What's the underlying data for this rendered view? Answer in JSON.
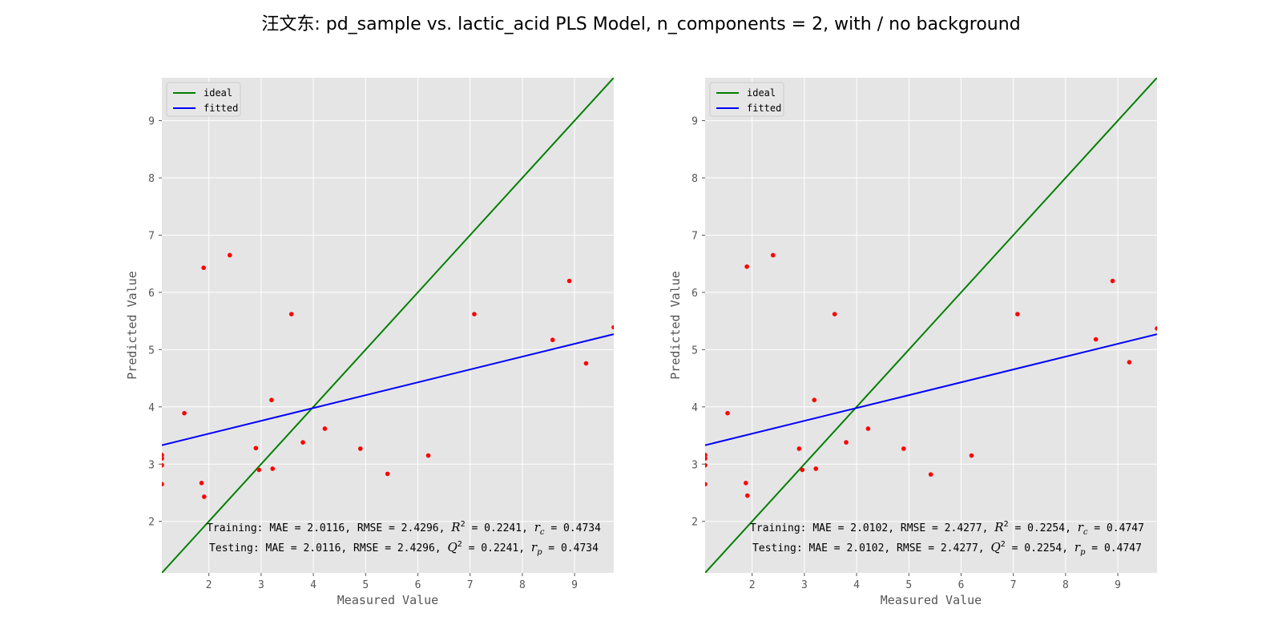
{
  "suptitle": "汪文东: pd_sample vs. lactic_acid PLS Model, n_components = 2, with / no background",
  "colors": {
    "ideal": "#008000",
    "fitted": "#0000ff",
    "points": "#ff0000",
    "panel_bg": "#e5e5e5",
    "grid": "#ffffff"
  },
  "chart_data": [
    {
      "type": "scatter",
      "xlabel": "Measured Value",
      "ylabel": "Predicted Value",
      "xlim": [
        1.1,
        9.75
      ],
      "ylim": [
        1.1,
        9.75
      ],
      "xticks": [
        2,
        3,
        4,
        5,
        6,
        7,
        8,
        9
      ],
      "yticks": [
        2,
        3,
        4,
        5,
        6,
        7,
        8,
        9
      ],
      "grid": true,
      "legend_position": "upper-left",
      "legend": [
        "ideal",
        "fitted"
      ],
      "ideal_line": {
        "x": [
          1.1,
          9.75
        ],
        "y": [
          1.1,
          9.75
        ]
      },
      "fitted_line": {
        "x": [
          1.1,
          9.75
        ],
        "y": [
          3.33,
          5.27
        ]
      },
      "points": [
        [
          1.1,
          2.65
        ],
        [
          1.1,
          2.98
        ],
        [
          1.1,
          3.1
        ],
        [
          1.1,
          3.16
        ],
        [
          1.53,
          3.89
        ],
        [
          1.86,
          2.67
        ],
        [
          1.9,
          6.43
        ],
        [
          1.91,
          2.43
        ],
        [
          2.4,
          6.65
        ],
        [
          2.9,
          3.28
        ],
        [
          2.96,
          2.9
        ],
        [
          3.2,
          4.12
        ],
        [
          3.22,
          2.92
        ],
        [
          3.58,
          5.62
        ],
        [
          3.8,
          3.38
        ],
        [
          4.22,
          3.62
        ],
        [
          4.9,
          3.27
        ],
        [
          5.42,
          2.83
        ],
        [
          6.2,
          3.15
        ],
        [
          7.08,
          5.62
        ],
        [
          8.58,
          5.17
        ],
        [
          8.9,
          6.2
        ],
        [
          9.22,
          4.76
        ],
        [
          9.75,
          5.39
        ]
      ],
      "annotations": {
        "training": {
          "prefix": "Training: MAE = 2.0116, RMSE = 2.4296, ",
          "stat": "R",
          "stat_value": " = 0.2241, ",
          "corr_sub": "c",
          "corr_value": " = 0.4734"
        },
        "testing": {
          "prefix": "Testing: MAE = 2.0116, RMSE = 2.4296, ",
          "stat": "Q",
          "stat_value": " = 0.2241, ",
          "corr_sub": "p",
          "corr_value": " = 0.4734"
        }
      }
    },
    {
      "type": "scatter",
      "xlabel": "Measured Value",
      "ylabel": "Predicted Value",
      "xlim": [
        1.1,
        9.75
      ],
      "ylim": [
        1.1,
        9.75
      ],
      "xticks": [
        2,
        3,
        4,
        5,
        6,
        7,
        8,
        9
      ],
      "yticks": [
        2,
        3,
        4,
        5,
        6,
        7,
        8,
        9
      ],
      "grid": true,
      "legend_position": "upper-left",
      "legend": [
        "ideal",
        "fitted"
      ],
      "ideal_line": {
        "x": [
          1.1,
          9.75
        ],
        "y": [
          1.1,
          9.75
        ]
      },
      "fitted_line": {
        "x": [
          1.1,
          9.75
        ],
        "y": [
          3.33,
          5.27
        ]
      },
      "points": [
        [
          1.1,
          2.65
        ],
        [
          1.1,
          2.98
        ],
        [
          1.1,
          3.1
        ],
        [
          1.1,
          3.16
        ],
        [
          1.53,
          3.89
        ],
        [
          1.88,
          2.67
        ],
        [
          1.9,
          6.45
        ],
        [
          1.91,
          2.45
        ],
        [
          2.4,
          6.65
        ],
        [
          2.9,
          3.27
        ],
        [
          2.96,
          2.9
        ],
        [
          3.19,
          4.12
        ],
        [
          3.22,
          2.92
        ],
        [
          3.58,
          5.62
        ],
        [
          3.8,
          3.38
        ],
        [
          4.22,
          3.62
        ],
        [
          4.9,
          3.27
        ],
        [
          5.42,
          2.82
        ],
        [
          6.2,
          3.15
        ],
        [
          7.08,
          5.62
        ],
        [
          8.58,
          5.18
        ],
        [
          8.9,
          6.2
        ],
        [
          9.22,
          4.78
        ],
        [
          9.75,
          5.37
        ]
      ],
      "annotations": {
        "training": {
          "prefix": "Training: MAE = 2.0102, RMSE = 2.4277, ",
          "stat": "R",
          "stat_value": " = 0.2254, ",
          "corr_sub": "c",
          "corr_value": " = 0.4747"
        },
        "testing": {
          "prefix": "Testing: MAE = 2.0102, RMSE = 2.4277, ",
          "stat": "Q",
          "stat_value": " = 0.2254, ",
          "corr_sub": "p",
          "corr_value": " = 0.4747"
        }
      }
    }
  ]
}
